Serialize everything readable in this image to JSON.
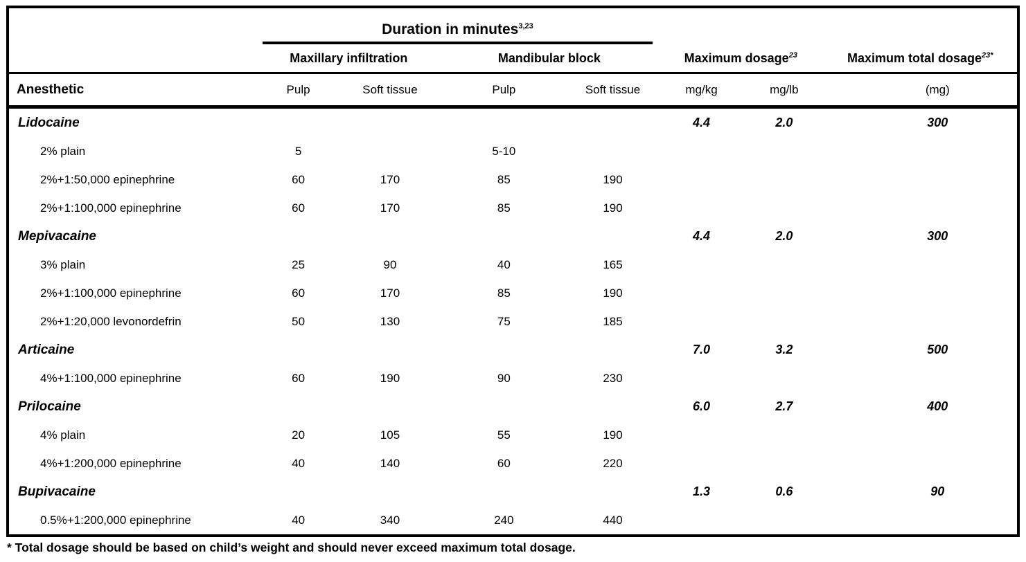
{
  "colors": {
    "border": "#000000",
    "text": "#000000",
    "background": "#ffffff"
  },
  "table": {
    "duration_header": "Duration in minutes",
    "duration_sup": "3,23",
    "group_headers": {
      "maxillary": "Maxillary infiltration",
      "mandibular": "Mandibular block",
      "max_dosage": "Maximum dosage",
      "max_dosage_sup": "23",
      "max_total_dosage": "Maximum total dosage",
      "max_total_dosage_sup": "23*"
    },
    "col_headers": {
      "anesthetic": "Anesthetic",
      "pulp_max": "Pulp",
      "soft_max": "Soft tissue",
      "pulp_mand": "Pulp",
      "soft_mand": "Soft tissue",
      "mg_kg": "mg/kg",
      "mg_lb": "mg/lb",
      "mg": "(mg)"
    },
    "rows": [
      {
        "type": "group",
        "label": "Lidocaine",
        "mg_kg": "4.4",
        "mg_lb": "2.0",
        "mg": "300"
      },
      {
        "type": "item",
        "label": "2% plain",
        "pulp_max": "5",
        "soft_max": "",
        "pulp_mand": "5-10",
        "soft_mand": ""
      },
      {
        "type": "item",
        "label": "2%+1:50,000 epinephrine",
        "pulp_max": "60",
        "soft_max": "170",
        "pulp_mand": "85",
        "soft_mand": "190"
      },
      {
        "type": "item",
        "label": "2%+1:100,000 epinephrine",
        "pulp_max": "60",
        "soft_max": "170",
        "pulp_mand": "85",
        "soft_mand": "190"
      },
      {
        "type": "group",
        "label": "Mepivacaine",
        "mg_kg": "4.4",
        "mg_lb": "2.0",
        "mg": "300"
      },
      {
        "type": "item",
        "label": "3% plain",
        "pulp_max": "25",
        "soft_max": "90",
        "pulp_mand": "40",
        "soft_mand": "165"
      },
      {
        "type": "item",
        "label": "2%+1:100,000 epinephrine",
        "pulp_max": "60",
        "soft_max": "170",
        "pulp_mand": "85",
        "soft_mand": "190"
      },
      {
        "type": "item",
        "label": "2%+1:20,000 levonordefrin",
        "pulp_max": "50",
        "soft_max": "130",
        "pulp_mand": "75",
        "soft_mand": "185"
      },
      {
        "type": "group",
        "label": "Articaine",
        "mg_kg": "7.0",
        "mg_lb": "3.2",
        "mg": "500"
      },
      {
        "type": "item",
        "label": "4%+1:100,000 epinephrine",
        "pulp_max": "60",
        "soft_max": "190",
        "pulp_mand": "90",
        "soft_mand": "230"
      },
      {
        "type": "group",
        "label": "Prilocaine",
        "mg_kg": "6.0",
        "mg_lb": "2.7",
        "mg": "400"
      },
      {
        "type": "item",
        "label": "4% plain",
        "pulp_max": "20",
        "soft_max": "105",
        "pulp_mand": "55",
        "soft_mand": "190"
      },
      {
        "type": "item",
        "label": "4%+1:200,000 epinephrine",
        "pulp_max": "40",
        "soft_max": "140",
        "pulp_mand": "60",
        "soft_mand": "220"
      },
      {
        "type": "group",
        "label": "Bupivacaine",
        "mg_kg": "1.3",
        "mg_lb": "0.6",
        "mg": "90"
      },
      {
        "type": "item",
        "label": "0.5%+1:200,000 epinephrine",
        "pulp_max": "40",
        "soft_max": "340",
        "pulp_mand": "240",
        "soft_mand": "440"
      }
    ],
    "footnote": "* Total dosage should be based on child’s weight and should never exceed maximum total dosage."
  }
}
